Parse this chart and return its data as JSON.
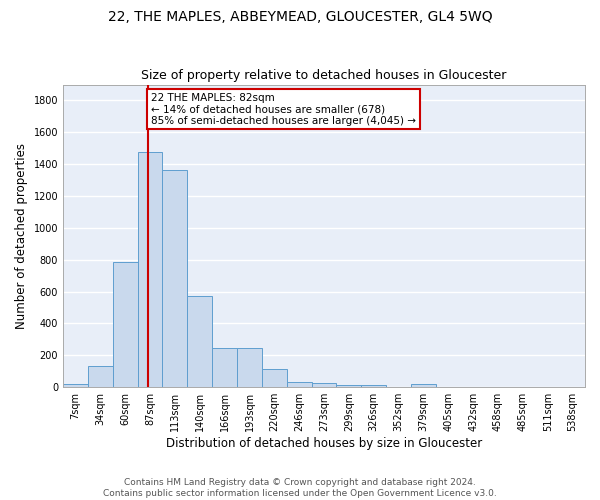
{
  "title": "22, THE MAPLES, ABBEYMEAD, GLOUCESTER, GL4 5WQ",
  "subtitle": "Size of property relative to detached houses in Gloucester",
  "xlabel": "Distribution of detached houses by size in Gloucester",
  "ylabel": "Number of detached properties",
  "bin_labels": [
    "7sqm",
    "34sqm",
    "60sqm",
    "87sqm",
    "113sqm",
    "140sqm",
    "166sqm",
    "193sqm",
    "220sqm",
    "246sqm",
    "273sqm",
    "299sqm",
    "326sqm",
    "352sqm",
    "379sqm",
    "405sqm",
    "432sqm",
    "458sqm",
    "485sqm",
    "511sqm",
    "538sqm"
  ],
  "bar_heights": [
    20,
    135,
    785,
    1475,
    1365,
    570,
    245,
    245,
    115,
    35,
    25,
    15,
    15,
    0,
    20,
    0,
    0,
    0,
    0,
    0,
    0
  ],
  "bar_color": "#c9d9ed",
  "bar_edge_color": "#5f9ecf",
  "vline_color": "#cc0000",
  "vline_pos": 2.92,
  "annotation_text": "22 THE MAPLES: 82sqm\n← 14% of detached houses are smaller (678)\n85% of semi-detached houses are larger (4,045) →",
  "annotation_box_color": "white",
  "annotation_box_edge": "#cc0000",
  "ylim": [
    0,
    1900
  ],
  "yticks": [
    0,
    200,
    400,
    600,
    800,
    1000,
    1200,
    1400,
    1600,
    1800
  ],
  "footer_text": "Contains HM Land Registry data © Crown copyright and database right 2024.\nContains public sector information licensed under the Open Government Licence v3.0.",
  "bg_color": "#e8eef8",
  "grid_color": "white",
  "title_fontsize": 10,
  "subtitle_fontsize": 9,
  "axis_label_fontsize": 8.5,
  "tick_fontsize": 7,
  "footer_fontsize": 6.5,
  "annotation_fontsize": 7.5
}
